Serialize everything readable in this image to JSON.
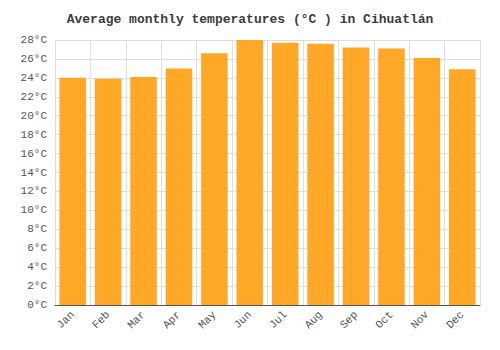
{
  "chart_data": {
    "type": "bar",
    "title": "Average monthly temperatures (°C ) in Cihuatlán",
    "categories": [
      "Jan",
      "Feb",
      "Mar",
      "Apr",
      "May",
      "Jun",
      "Jul",
      "Aug",
      "Sep",
      "Oct",
      "Nov",
      "Dec"
    ],
    "values": [
      24.0,
      23.9,
      24.1,
      25.0,
      26.6,
      28.0,
      27.7,
      27.6,
      27.2,
      27.1,
      26.1,
      24.9
    ],
    "color": "#FFA726",
    "ylim": [
      0,
      28
    ],
    "yticks": [
      {
        "value": 0,
        "label": "0°C"
      },
      {
        "value": 2,
        "label": "2°C"
      },
      {
        "value": 4,
        "label": "4°C"
      },
      {
        "value": 6,
        "label": "6°C"
      },
      {
        "value": 8,
        "label": "8°C"
      },
      {
        "value": 10,
        "label": "10°C"
      },
      {
        "value": 12,
        "label": "12°C"
      },
      {
        "value": 14,
        "label": "14°C"
      },
      {
        "value": 16,
        "label": "16°C"
      },
      {
        "value": 18,
        "label": "18°C"
      },
      {
        "value": 20,
        "label": "20°C"
      },
      {
        "value": 22,
        "label": "22°C"
      },
      {
        "value": 24,
        "label": "24°C"
      },
      {
        "value": 26,
        "label": "26°C"
      },
      {
        "value": 28,
        "label": "28°C"
      }
    ],
    "grid": true
  }
}
